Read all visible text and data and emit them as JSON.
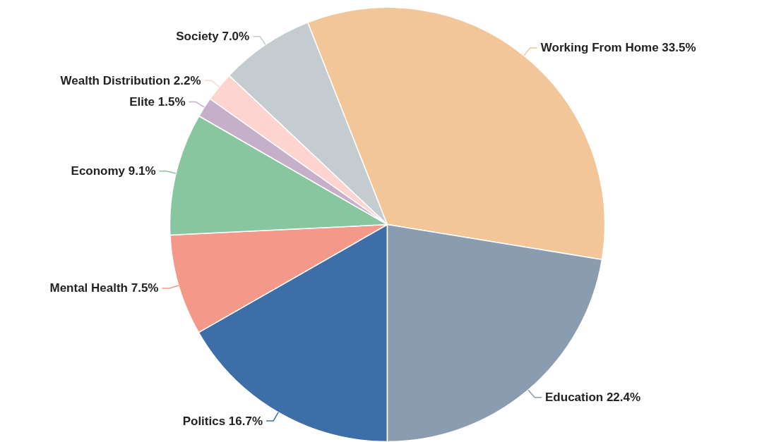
{
  "chart_data": {
    "type": "pie",
    "categories": [
      "Politics",
      "Mental Health",
      "Economy",
      "Elite",
      "Wealth Distribution",
      "Society",
      "Working From Home",
      "Education"
    ],
    "values": [
      16.7,
      7.5,
      9.1,
      1.5,
      2.2,
      7.0,
      33.5,
      22.4
    ],
    "value_labels": [
      "16.7%",
      "7.5%",
      "9.1%",
      "1.5%",
      "2.2%",
      "7.0%",
      "33.5%",
      "22.4%"
    ],
    "colors": [
      "#3d6ea8",
      "#f4998a",
      "#88c6a0",
      "#c6afc8",
      "#fdd4d0",
      "#c5ccd0",
      "#f2c698",
      "#8a9db0"
    ],
    "legend": false
  }
}
